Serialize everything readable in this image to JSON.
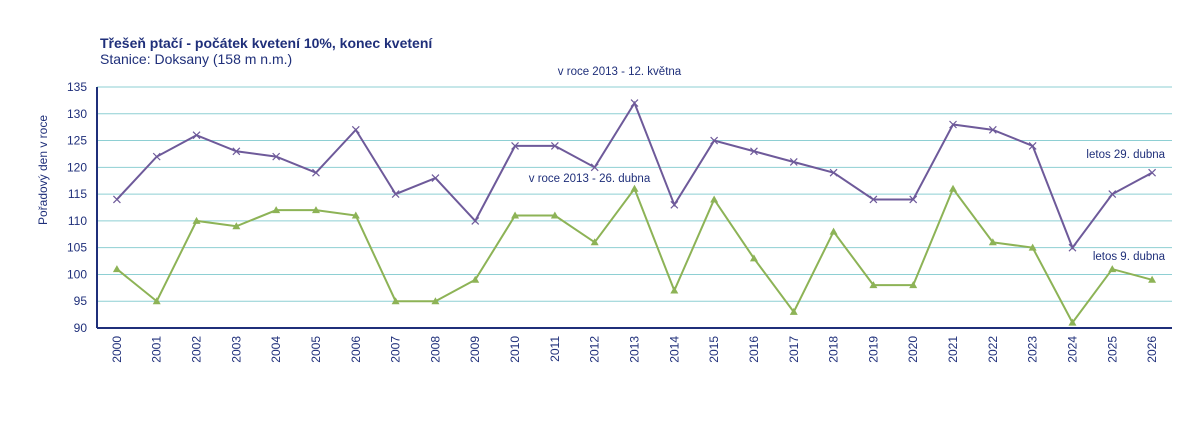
{
  "chart_data": {
    "type": "line",
    "title": "Třešeň ptačí - počátek kvetení 10%, konec kvetení",
    "subtitle": "Stanice: Doksany (158 m n.m.)",
    "ylabel": "Pořadový den v roce",
    "xlabel": "",
    "ylim": [
      90,
      135
    ],
    "yticks": [
      90,
      95,
      100,
      105,
      110,
      115,
      120,
      125,
      130,
      135
    ],
    "grid": true,
    "categories": [
      "2000",
      "2001",
      "2002",
      "2003",
      "2004",
      "2005",
      "2006",
      "2007",
      "2008",
      "2009",
      "2010",
      "2011",
      "2012",
      "2013",
      "2014",
      "2015",
      "2016",
      "2017",
      "2018",
      "2019",
      "2020",
      "2021",
      "2022",
      "2023",
      "2024",
      "2025",
      "2026"
    ],
    "series": [
      {
        "name": "konec kvetení",
        "color": "#6e5a9a",
        "marker": "x",
        "values": [
          114,
          122,
          126,
          123,
          122,
          119,
          127,
          115,
          118,
          110,
          124,
          124,
          120,
          132,
          113,
          125,
          123,
          121,
          119,
          114,
          114,
          128,
          127,
          124,
          105,
          115,
          119
        ]
      },
      {
        "name": "počátek kvetení 10%",
        "color": "#8db356",
        "marker": "triangle",
        "values": [
          101,
          95,
          110,
          109,
          112,
          112,
          111,
          95,
          95,
          99,
          111,
          111,
          106,
          116,
          97,
          114,
          103,
          93,
          108,
          98,
          98,
          116,
          106,
          105,
          91,
          101,
          99
        ]
      }
    ],
    "annotations": [
      {
        "text": "v roce 2013 - 12. května",
        "series": 0,
        "category": "2013"
      },
      {
        "text": "v roce 2013 - 26. dubna",
        "series": 1,
        "category": "2013"
      },
      {
        "text": "letos 29. dubna",
        "series": 0,
        "category": "2026"
      },
      {
        "text": "letos 9. dubna",
        "series": 1,
        "category": "2026"
      }
    ]
  }
}
